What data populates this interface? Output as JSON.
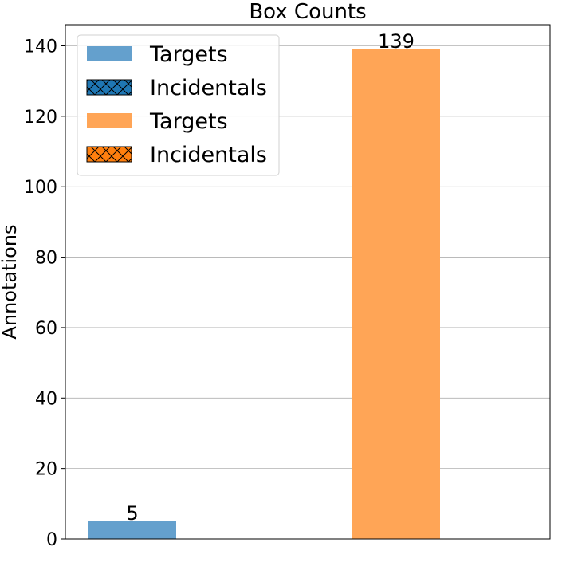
{
  "chart_data": {
    "type": "bar",
    "title": "Box Counts",
    "xlabel": "",
    "ylabel": "Annotations",
    "ylim": [
      0,
      146
    ],
    "yticks": [
      0,
      20,
      40,
      60,
      80,
      100,
      120,
      140
    ],
    "grid": "y",
    "legend_placement": "top-left",
    "series": [
      {
        "name": "Targets",
        "color": "#64a0cd",
        "values": [
          5,
          139
        ],
        "colors": [
          "#64a0cd",
          "#ffa556"
        ]
      }
    ],
    "data_labels": [
      "5",
      "139"
    ],
    "legend": [
      {
        "label": "Targets",
        "color": "#64a0cd",
        "hatch": false
      },
      {
        "label": "Incidentals",
        "color": "#1f77b4",
        "hatch": true
      },
      {
        "label": "Targets",
        "color": "#ffa556",
        "hatch": false
      },
      {
        "label": "Incidentals",
        "color": "#ff7f0e",
        "hatch": true
      }
    ]
  }
}
